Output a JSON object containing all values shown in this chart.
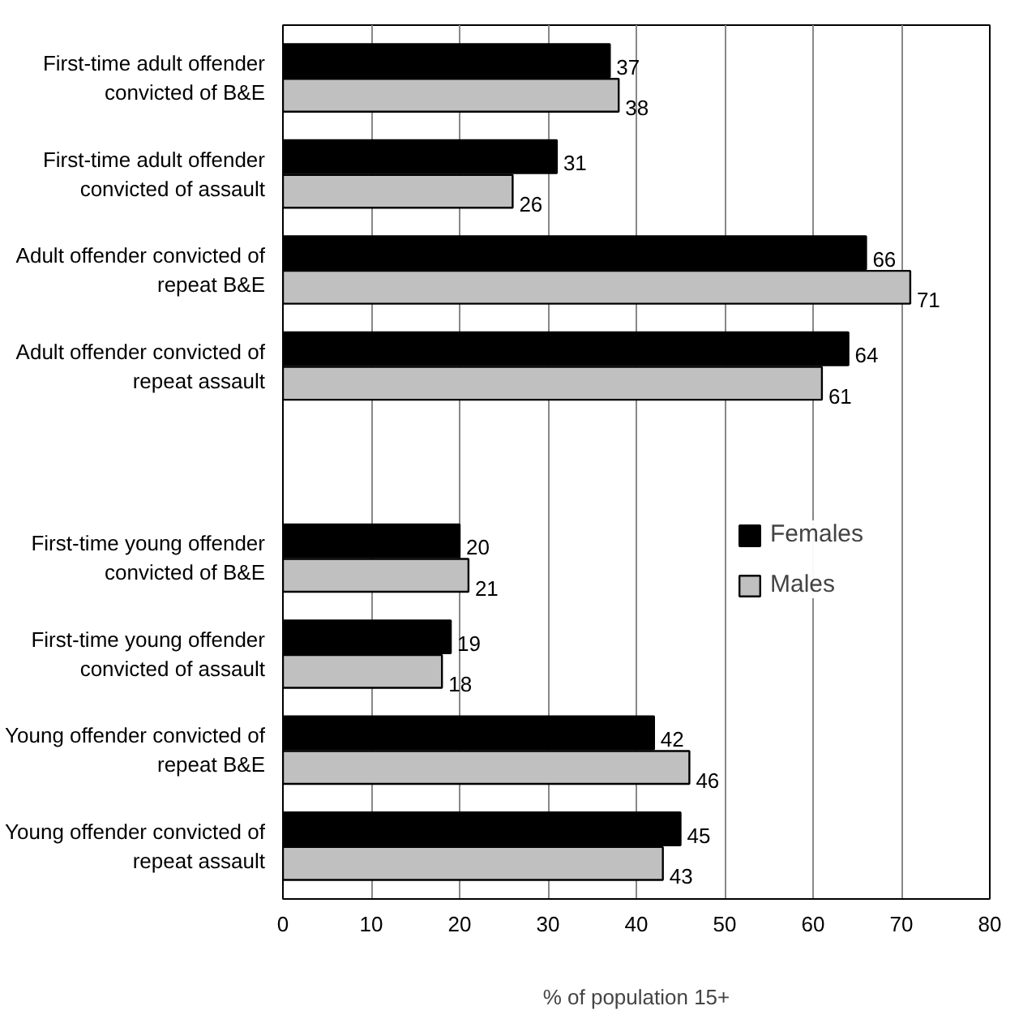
{
  "chart_data": {
    "type": "bar",
    "orientation": "horizontal",
    "xlabel": "% of population 15+",
    "categories": [
      "First-time adult offender convicted of B&E",
      "First-time adult offender convicted of assault",
      "Adult offender convicted of repeat B&E",
      "Adult offender convicted of repeat assault",
      null,
      "First-time young offender convicted of B&E",
      "First-time young offender convicted of assault",
      "Young offender convicted of repeat B&E",
      "Young offender convicted of repeat assault"
    ],
    "series": [
      {
        "name": "Females",
        "color": "#000000",
        "values": [
          37,
          31,
          66,
          64,
          null,
          20,
          19,
          42,
          45
        ]
      },
      {
        "name": "Males",
        "color": "#c0c0c0",
        "values": [
          38,
          26,
          71,
          61,
          null,
          21,
          18,
          46,
          43
        ]
      }
    ],
    "xlim": [
      0,
      80
    ],
    "xticks": [
      0,
      10,
      20,
      30,
      40,
      50,
      60,
      70,
      80
    ],
    "grid": "x",
    "legend": "right",
    "data_labels": true
  }
}
